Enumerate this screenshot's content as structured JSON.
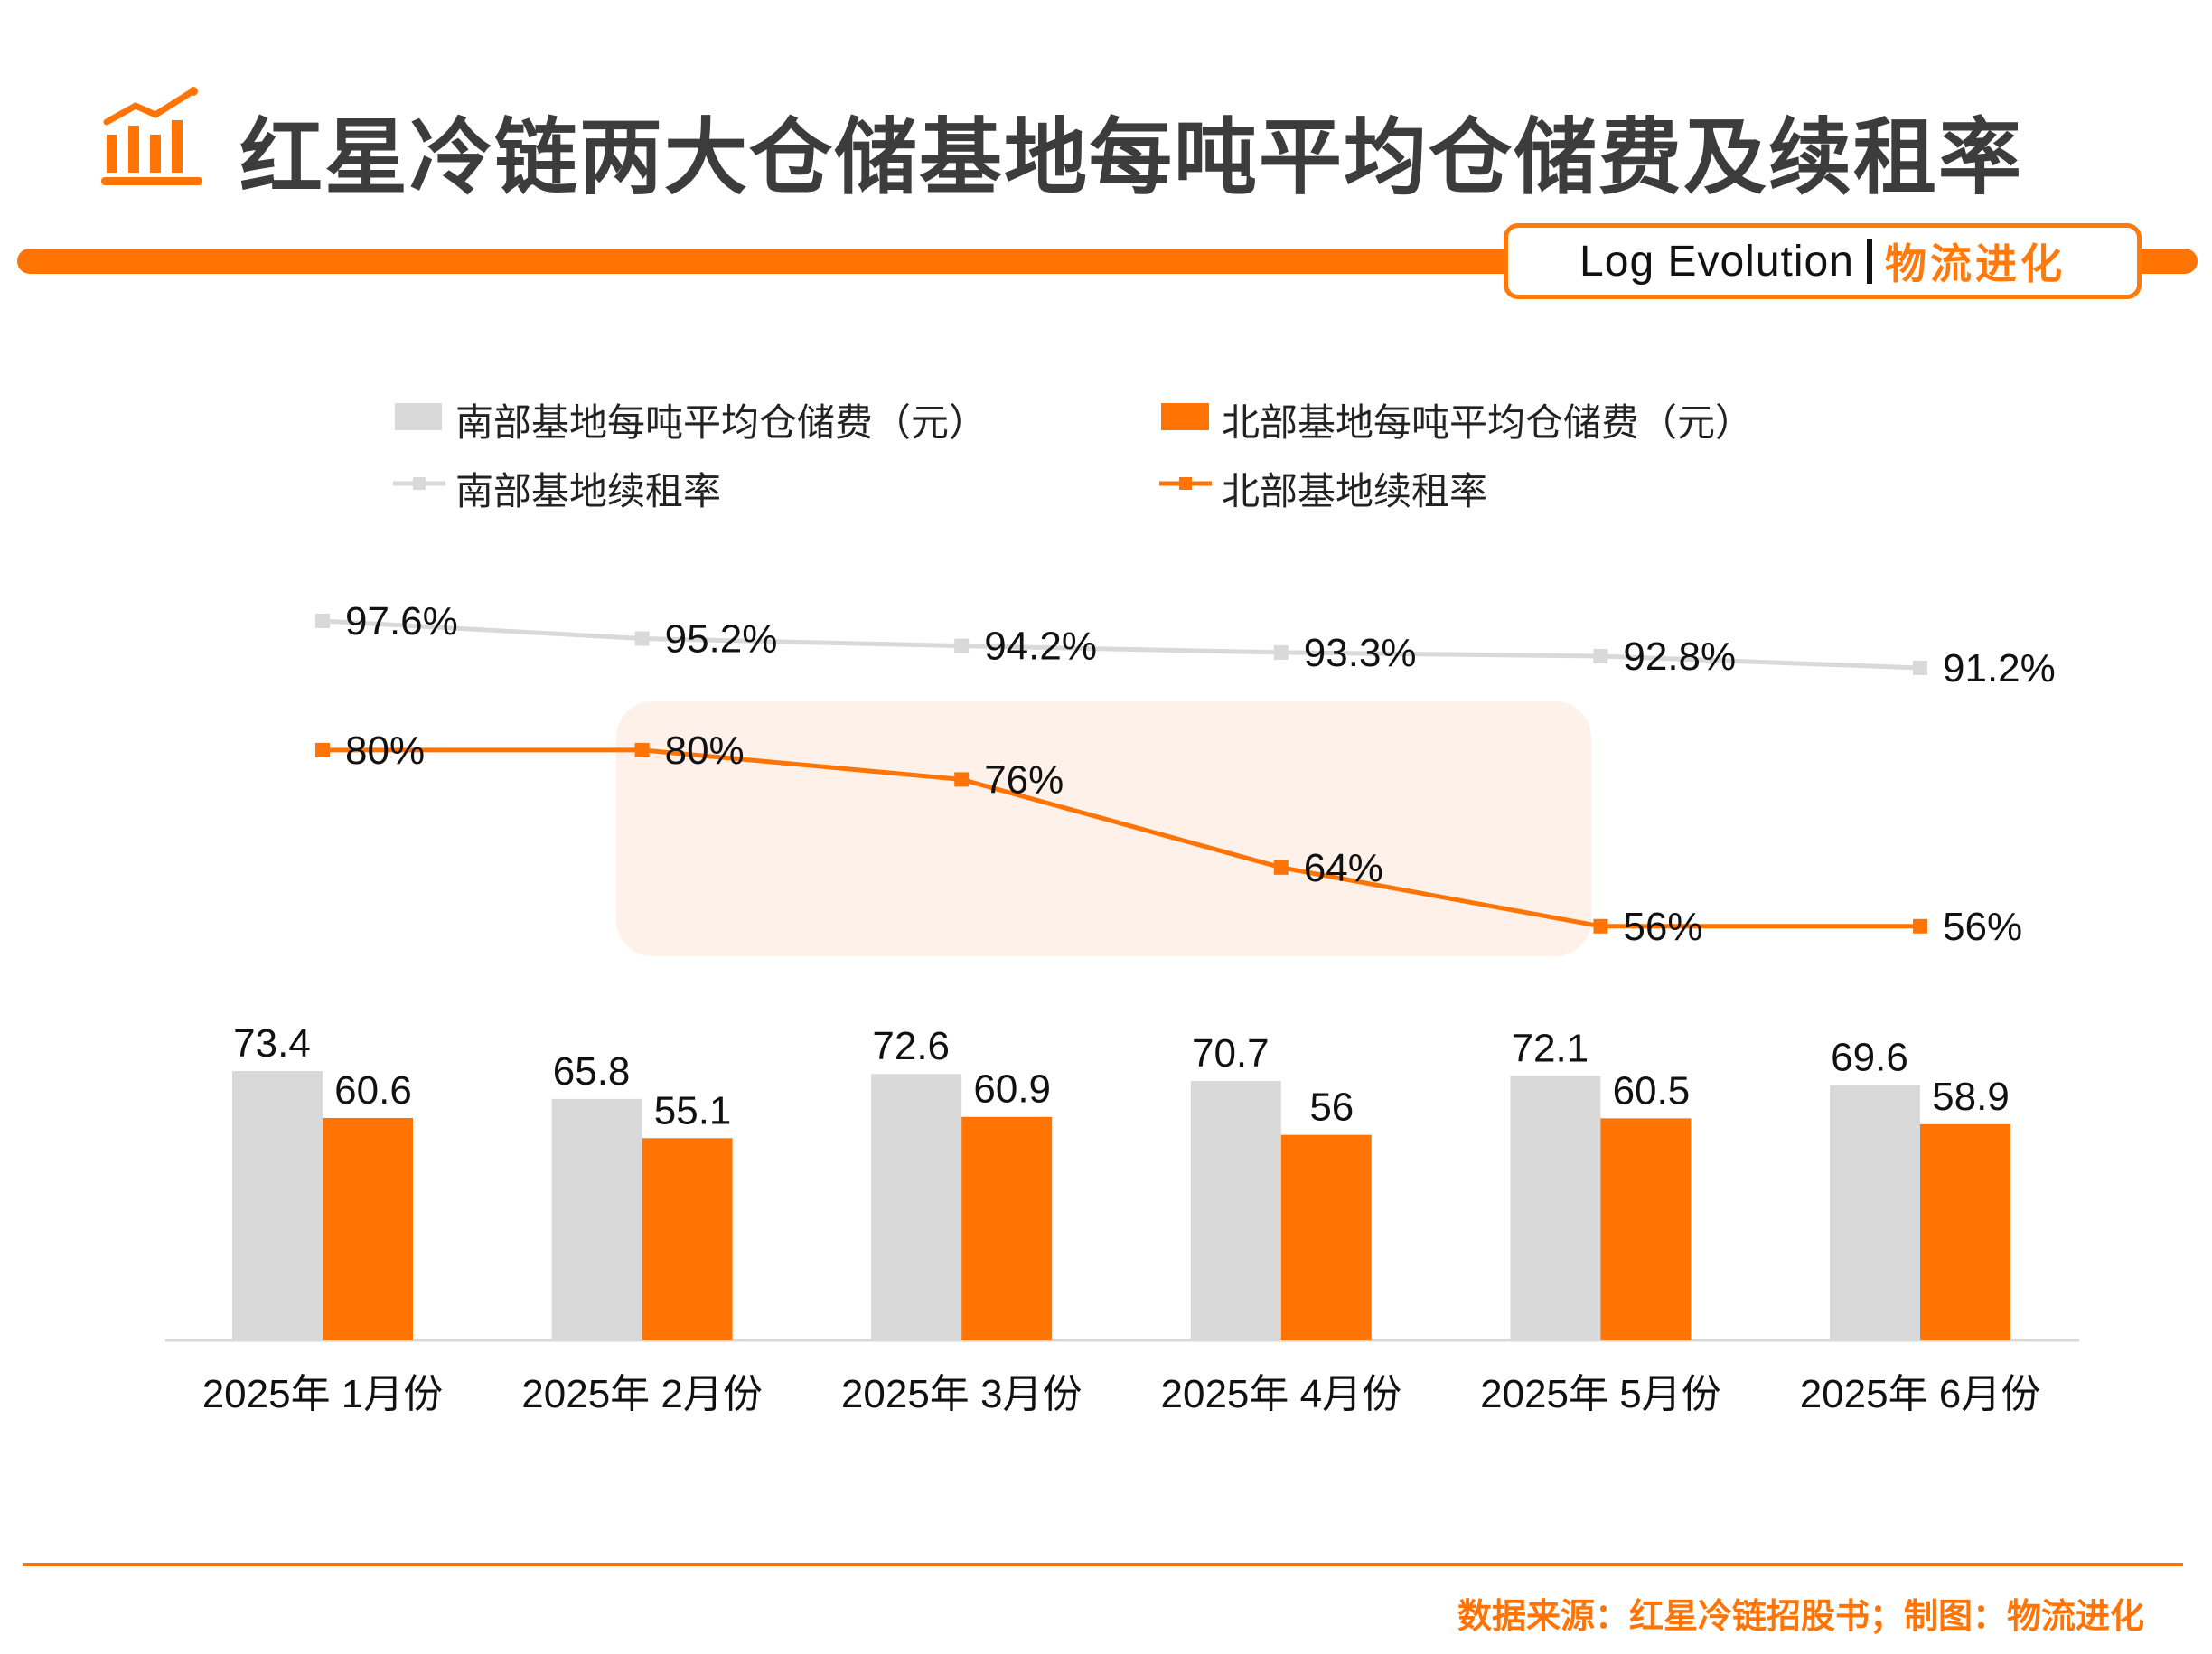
{
  "header": {
    "title": "红星冷链两大仓储基地每吨平均仓储费及续租率",
    "title_icon": "bar-chart-trend-icon",
    "badge_en": "Log Evolution",
    "badge_cn": "物流进化"
  },
  "watermark": {
    "cn": "物流进化",
    "en": "Log Evolution"
  },
  "footer": {
    "source": "数据来源：红星冷链招股书；制图：物流进化"
  },
  "colors": {
    "accent": "#ff7405",
    "south": "#d9d9d9",
    "north": "#ff7405",
    "title": "#3c3c3c"
  },
  "chart_data": {
    "type": "bar+line",
    "title": "红星冷链两大仓储基地每吨平均仓储费及续租率",
    "categories": [
      "2025年 1月份",
      "2025年 2月份",
      "2025年 3月份",
      "2025年 4月份",
      "2025年 5月份",
      "2025年 6月份"
    ],
    "legend_position": "top",
    "grid": false,
    "bar_series": [
      {
        "name": "南部基地每吨平均仓储费（元）",
        "color": "#d9d9d9",
        "values": [
          73.4,
          65.8,
          72.6,
          70.7,
          72.1,
          69.6
        ]
      },
      {
        "name": "北部基地每吨平均仓储费（元）",
        "color": "#ff7405",
        "values": [
          60.6,
          55.1,
          60.9,
          56,
          60.5,
          58.9
        ]
      }
    ],
    "line_series": [
      {
        "name": "南部基地续租率",
        "color": "#d9d9d9",
        "values": [
          97.6,
          95.2,
          94.2,
          93.3,
          92.8,
          91.2
        ],
        "labels": [
          "97.6%",
          "95.2%",
          "94.2%",
          "93.3%",
          "92.8%",
          "91.2%"
        ]
      },
      {
        "name": "北部基地续租率",
        "color": "#ff7405",
        "values": [
          80,
          80,
          76,
          64,
          56,
          56
        ],
        "labels": [
          "80%",
          "80%",
          "76%",
          "64%",
          "56%",
          "56%"
        ]
      }
    ]
  }
}
